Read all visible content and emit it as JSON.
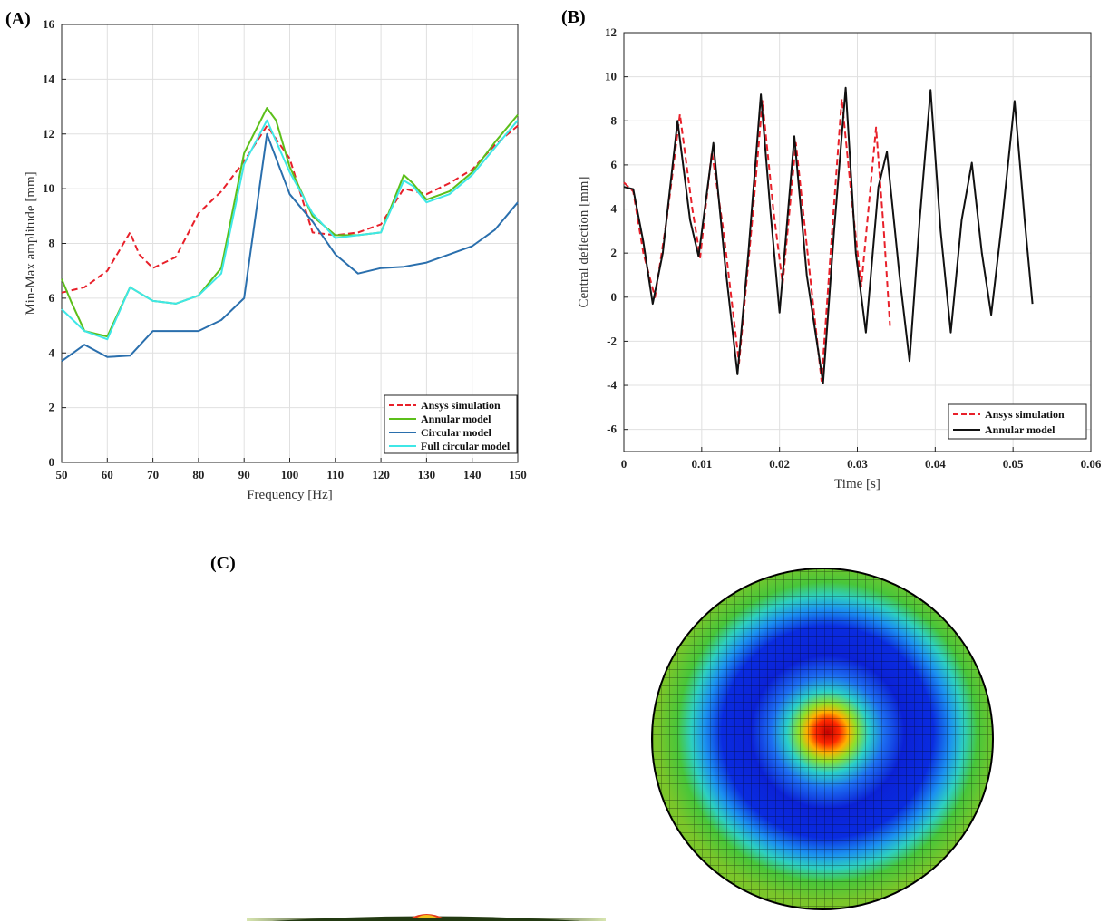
{
  "panels": {
    "a_label": "(A)",
    "b_label": "(B)",
    "c_label": "(C)"
  },
  "chart_data": [
    {
      "type": "line",
      "panel": "(A)",
      "xlabel": "Frequency [Hz]",
      "ylabel": "Min-Max amplitude [mm]",
      "xlim": [
        50,
        150
      ],
      "ylim": [
        0,
        16
      ],
      "xticks": [
        50,
        60,
        70,
        80,
        90,
        100,
        110,
        120,
        130,
        140,
        150
      ],
      "yticks": [
        0,
        2,
        4,
        6,
        8,
        10,
        12,
        14,
        16
      ],
      "grid": true,
      "legend_position": "bottom-right",
      "series": [
        {
          "name": "Ansys simulation",
          "color": "#e8202a",
          "dash": "dashed",
          "points": [
            [
              50,
              6.2
            ],
            [
              55,
              6.4
            ],
            [
              60,
              7.0
            ],
            [
              65,
              8.4
            ],
            [
              67,
              7.6
            ],
            [
              70,
              7.1
            ],
            [
              75,
              7.5
            ],
            [
              80,
              9.1
            ],
            [
              85,
              9.9
            ],
            [
              90,
              11.0
            ],
            [
              95,
              12.3
            ],
            [
              100,
              11.1
            ],
            [
              105,
              8.4
            ],
            [
              110,
              8.3
            ],
            [
              115,
              8.4
            ],
            [
              120,
              8.7
            ],
            [
              125,
              10.0
            ],
            [
              130,
              9.8
            ],
            [
              135,
              10.2
            ],
            [
              140,
              10.7
            ],
            [
              145,
              11.6
            ],
            [
              150,
              12.3
            ]
          ]
        },
        {
          "name": "Annular model",
          "color": "#5cbf1a",
          "dash": "solid",
          "points": [
            [
              50,
              6.7
            ],
            [
              52,
              5.9
            ],
            [
              55,
              4.8
            ],
            [
              60,
              4.6
            ],
            [
              65,
              6.4
            ],
            [
              70,
              5.9
            ],
            [
              75,
              5.8
            ],
            [
              80,
              6.1
            ],
            [
              85,
              7.1
            ],
            [
              90,
              11.3
            ],
            [
              95,
              12.95
            ],
            [
              97,
              12.5
            ],
            [
              100,
              10.8
            ],
            [
              105,
              9.0
            ],
            [
              110,
              8.3
            ],
            [
              115,
              8.3
            ],
            [
              120,
              8.4
            ],
            [
              125,
              10.5
            ],
            [
              127,
              10.2
            ],
            [
              130,
              9.6
            ],
            [
              135,
              9.9
            ],
            [
              140,
              10.6
            ],
            [
              145,
              11.7
            ],
            [
              150,
              12.7
            ]
          ]
        },
        {
          "name": "Circular model",
          "color": "#2a6fad",
          "dash": "solid",
          "points": [
            [
              50,
              3.7
            ],
            [
              55,
              4.3
            ],
            [
              60,
              3.85
            ],
            [
              65,
              3.9
            ],
            [
              70,
              4.8
            ],
            [
              75,
              4.8
            ],
            [
              80,
              4.8
            ],
            [
              85,
              5.2
            ],
            [
              90,
              6.0
            ],
            [
              95,
              12.0
            ],
            [
              100,
              9.8
            ],
            [
              105,
              8.8
            ],
            [
              110,
              7.6
            ],
            [
              115,
              6.9
            ],
            [
              120,
              7.1
            ],
            [
              125,
              7.15
            ],
            [
              130,
              7.3
            ],
            [
              135,
              7.6
            ],
            [
              140,
              7.9
            ],
            [
              145,
              8.5
            ],
            [
              150,
              9.5
            ]
          ]
        },
        {
          "name": "Full circular model",
          "color": "#3fe7e7",
          "dash": "solid",
          "points": [
            [
              50,
              5.6
            ],
            [
              55,
              4.8
            ],
            [
              60,
              4.5
            ],
            [
              65,
              6.4
            ],
            [
              70,
              5.9
            ],
            [
              75,
              5.8
            ],
            [
              80,
              6.1
            ],
            [
              85,
              6.9
            ],
            [
              90,
              10.9
            ],
            [
              95,
              12.5
            ],
            [
              100,
              10.6
            ],
            [
              105,
              9.1
            ],
            [
              110,
              8.2
            ],
            [
              115,
              8.3
            ],
            [
              120,
              8.4
            ],
            [
              125,
              10.3
            ],
            [
              127,
              10.1
            ],
            [
              130,
              9.5
            ],
            [
              135,
              9.8
            ],
            [
              140,
              10.5
            ],
            [
              145,
              11.5
            ],
            [
              150,
              12.5
            ]
          ]
        }
      ]
    },
    {
      "type": "line",
      "panel": "(B)",
      "xlabel": "Time [s]",
      "ylabel": "Central deflection [mm]",
      "xlim": [
        0,
        0.06
      ],
      "ylim": [
        -7,
        12
      ],
      "xticks": [
        0,
        0.01,
        0.02,
        0.03,
        0.04,
        0.05,
        0.06
      ],
      "yticks": [
        -6,
        -4,
        -2,
        0,
        2,
        4,
        6,
        8,
        10,
        12
      ],
      "grid": true,
      "legend_position": "bottom-right",
      "series": [
        {
          "name": "Ansys simulation",
          "color": "#e8202a",
          "dash": "dashed",
          "points": [
            [
              0,
              5.2
            ],
            [
              0.0012,
              4.8
            ],
            [
              0.0025,
              2.0
            ],
            [
              0.004,
              0.0
            ],
            [
              0.0055,
              3.5
            ],
            [
              0.0072,
              8.3
            ],
            [
              0.0088,
              4.0
            ],
            [
              0.0098,
              1.8
            ],
            [
              0.0113,
              6.6
            ],
            [
              0.0128,
              3.0
            ],
            [
              0.0148,
              -3.0
            ],
            [
              0.0165,
              3.5
            ],
            [
              0.0178,
              8.9
            ],
            [
              0.0192,
              4.0
            ],
            [
              0.0204,
              0.6
            ],
            [
              0.0221,
              7.0
            ],
            [
              0.0236,
              2.0
            ],
            [
              0.0254,
              -3.8
            ],
            [
              0.0268,
              3.2
            ],
            [
              0.028,
              9.0
            ],
            [
              0.0294,
              4.0
            ],
            [
              0.0305,
              0.5
            ],
            [
              0.0324,
              7.7
            ],
            [
              0.0334,
              3.0
            ],
            [
              0.0342,
              -1.3
            ]
          ]
        },
        {
          "name": "Annular model",
          "color": "#111111",
          "dash": "solid",
          "points": [
            [
              0,
              5.0
            ],
            [
              0.0012,
              4.9
            ],
            [
              0.0025,
              2.5
            ],
            [
              0.0037,
              -0.3
            ],
            [
              0.005,
              2.0
            ],
            [
              0.0069,
              8.0
            ],
            [
              0.0085,
              3.5
            ],
            [
              0.0096,
              1.85
            ],
            [
              0.0115,
              7.0
            ],
            [
              0.013,
              1.5
            ],
            [
              0.0146,
              -3.5
            ],
            [
              0.016,
              2.0
            ],
            [
              0.0176,
              9.2
            ],
            [
              0.0188,
              4.0
            ],
            [
              0.02,
              -0.7
            ],
            [
              0.0219,
              7.3
            ],
            [
              0.0235,
              1.0
            ],
            [
              0.0256,
              -3.9
            ],
            [
              0.027,
              3.0
            ],
            [
              0.0285,
              9.5
            ],
            [
              0.0298,
              2.0
            ],
            [
              0.0311,
              -1.6
            ],
            [
              0.0327,
              5.0
            ],
            [
              0.0338,
              6.6
            ],
            [
              0.0354,
              1.0
            ],
            [
              0.0367,
              -2.9
            ],
            [
              0.038,
              3.5
            ],
            [
              0.0394,
              9.4
            ],
            [
              0.0407,
              3.0
            ],
            [
              0.042,
              -1.6
            ],
            [
              0.0434,
              3.5
            ],
            [
              0.0447,
              6.1
            ],
            [
              0.046,
              2.0
            ],
            [
              0.0472,
              -0.8
            ],
            [
              0.0486,
              3.5
            ],
            [
              0.0502,
              8.9
            ],
            [
              0.0515,
              3.5
            ],
            [
              0.0525,
              -0.3
            ]
          ]
        }
      ]
    }
  ]
}
